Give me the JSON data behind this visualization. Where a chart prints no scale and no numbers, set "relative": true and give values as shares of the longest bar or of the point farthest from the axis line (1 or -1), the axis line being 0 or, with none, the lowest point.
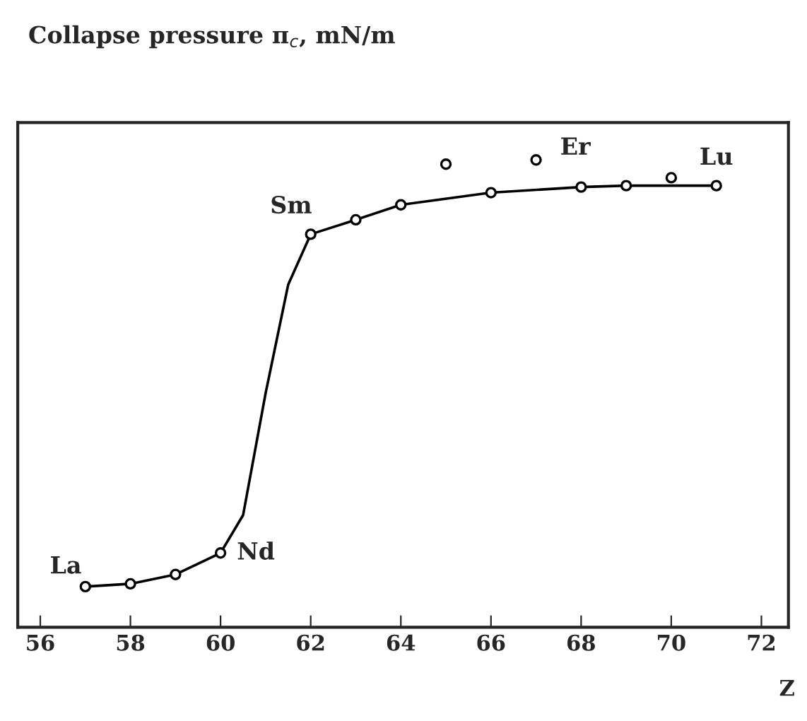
{
  "chart_data": {
    "type": "line",
    "title": "Collapse pressure π$_{c}$, mN/m",
    "xlabel": "Z",
    "relative": true,
    "xlim": [
      55.5,
      72.6
    ],
    "xticks": [
      56,
      58,
      60,
      62,
      64,
      66,
      68,
      70,
      72
    ],
    "grid": false,
    "series": [
      {
        "color": "#000000",
        "marker": "none",
        "x": [
          57,
          58,
          59,
          60,
          60.5,
          61,
          61.5,
          62,
          63,
          64,
          66,
          68,
          69,
          71
        ],
        "values": [
          0.087,
          0.093,
          0.113,
          0.159,
          0.24,
          0.501,
          0.733,
          0.841,
          0.872,
          0.904,
          0.93,
          0.942,
          0.945,
          0.945
        ]
      },
      {
        "type": "scatter",
        "color": "#000000",
        "marker": "circle",
        "x": [
          57,
          58,
          59,
          60,
          62,
          63,
          64,
          65,
          66,
          67,
          68,
          69,
          70,
          71
        ],
        "values": [
          0.087,
          0.093,
          0.113,
          0.159,
          0.841,
          0.872,
          0.904,
          0.991,
          0.93,
          1.0,
          0.942,
          0.945,
          0.962,
          0.945
        ]
      }
    ],
    "annotations": [
      {
        "text": "La",
        "x": 57,
        "y": 0.087
      },
      {
        "text": "Nd",
        "x": 60,
        "y": 0.159
      },
      {
        "text": "Sm",
        "x": 62,
        "y": 0.841
      },
      {
        "text": "Er",
        "x": 67,
        "y": 1.0
      },
      {
        "text": "Lu",
        "x": 71,
        "y": 0.945
      }
    ]
  }
}
